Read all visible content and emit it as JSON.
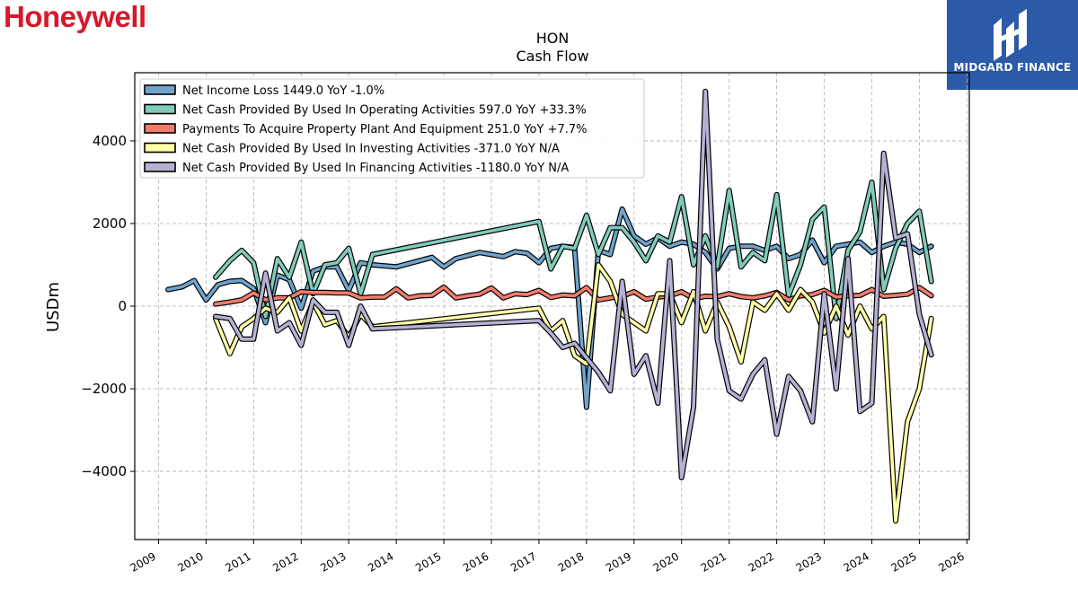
{
  "brand": {
    "name": "Honeywell",
    "color": "#d7182a"
  },
  "watermark": {
    "text": "MIDGARD FINANCE",
    "background": "#2b5aa8"
  },
  "chart_data": {
    "type": "line",
    "title": "HON",
    "subtitle": "Cash Flow",
    "ylabel": "USDm",
    "xlabel": "",
    "xlim": [
      2008.5,
      2026.05
    ],
    "ylim": [
      -5650,
      5650
    ],
    "yticks": [
      -4000,
      -2000,
      0,
      2000,
      4000
    ],
    "ytick_labels": [
      "−4000",
      "−2000",
      "0",
      "2000",
      "4000"
    ],
    "xticks": [
      2009,
      2010,
      2011,
      2012,
      2013,
      2014,
      2015,
      2016,
      2017,
      2018,
      2019,
      2020,
      2021,
      2022,
      2023,
      2024,
      2025,
      2026
    ],
    "xtick_labels": [
      "2009",
      "2010",
      "2011",
      "2012",
      "2013",
      "2014",
      "2015",
      "2016",
      "2017",
      "2018",
      "2019",
      "2020",
      "2021",
      "2022",
      "2023",
      "2024",
      "2025",
      "2026"
    ],
    "grid": true,
    "legend_position": "top-left",
    "series": [
      {
        "name": "Net Income Loss",
        "legend": "Net Income Loss  1449.0 YoY -1.0%",
        "color": "#6fa3cc",
        "points": [
          [
            2009.2,
            400
          ],
          [
            2009.5,
            470
          ],
          [
            2009.75,
            620
          ],
          [
            2010.0,
            150
          ],
          [
            2010.25,
            520
          ],
          [
            2010.5,
            600
          ],
          [
            2010.75,
            620
          ],
          [
            2011.0,
            430
          ],
          [
            2011.25,
            -400
          ],
          [
            2011.5,
            750
          ],
          [
            2011.75,
            640
          ],
          [
            2012.0,
            -50
          ],
          [
            2012.25,
            850
          ],
          [
            2012.5,
            950
          ],
          [
            2012.75,
            950
          ],
          [
            2013.0,
            380
          ],
          [
            2013.25,
            1050
          ],
          [
            2013.5,
            1000
          ],
          [
            2014.0,
            950
          ],
          [
            2014.75,
            1180
          ],
          [
            2015.0,
            950
          ],
          [
            2015.25,
            1150
          ],
          [
            2015.75,
            1300
          ],
          [
            2016.0,
            1250
          ],
          [
            2016.25,
            1200
          ],
          [
            2016.5,
            1320
          ],
          [
            2016.75,
            1280
          ],
          [
            2017.0,
            1050
          ],
          [
            2017.25,
            1400
          ],
          [
            2017.5,
            1450
          ],
          [
            2017.75,
            1420
          ],
          [
            2018.0,
            -2450
          ],
          [
            2018.25,
            1350
          ],
          [
            2018.5,
            1250
          ],
          [
            2018.75,
            2350
          ],
          [
            2019.0,
            1700
          ],
          [
            2019.25,
            1500
          ],
          [
            2019.5,
            1650
          ],
          [
            2019.75,
            1450
          ],
          [
            2020.0,
            1550
          ],
          [
            2020.25,
            1500
          ],
          [
            2020.5,
            1300
          ],
          [
            2020.75,
            900
          ],
          [
            2021.0,
            1400
          ],
          [
            2021.25,
            1450
          ],
          [
            2021.5,
            1450
          ],
          [
            2021.75,
            1350
          ],
          [
            2022.0,
            1450
          ],
          [
            2022.25,
            1150
          ],
          [
            2022.5,
            1250
          ],
          [
            2022.75,
            1600
          ],
          [
            2023.0,
            1050
          ],
          [
            2023.25,
            1450
          ],
          [
            2023.5,
            1500
          ],
          [
            2023.75,
            1550
          ],
          [
            2024.0,
            1300
          ],
          [
            2024.25,
            1450
          ],
          [
            2024.5,
            1550
          ],
          [
            2024.75,
            1500
          ],
          [
            2025.0,
            1300
          ],
          [
            2025.25,
            1449
          ]
        ]
      },
      {
        "name": "Net Cash Provided By Used In Operating Activities",
        "legend": "Net Cash Provided By Used In Operating Activities  597.0 YoY +33.3%",
        "color": "#80cbb9",
        "points": [
          [
            2010.2,
            700
          ],
          [
            2010.5,
            1100
          ],
          [
            2010.75,
            1350
          ],
          [
            2011.0,
            1050
          ],
          [
            2011.25,
            -250
          ],
          [
            2011.5,
            1150
          ],
          [
            2011.75,
            700
          ],
          [
            2012.0,
            1550
          ],
          [
            2012.25,
            300
          ],
          [
            2012.5,
            1000
          ],
          [
            2012.75,
            1050
          ],
          [
            2013.0,
            1400
          ],
          [
            2013.25,
            300
          ],
          [
            2013.5,
            1250
          ],
          [
            2017.0,
            2050
          ],
          [
            2017.25,
            900
          ],
          [
            2017.5,
            1450
          ],
          [
            2017.75,
            1400
          ],
          [
            2018.0,
            2200
          ],
          [
            2018.25,
            1250
          ],
          [
            2018.5,
            1900
          ],
          [
            2018.75,
            1900
          ],
          [
            2019.0,
            1550
          ],
          [
            2019.25,
            1100
          ],
          [
            2019.5,
            1700
          ],
          [
            2019.75,
            1550
          ],
          [
            2020.0,
            2650
          ],
          [
            2020.25,
            1000
          ],
          [
            2020.5,
            1700
          ],
          [
            2020.75,
            950
          ],
          [
            2021.0,
            2800
          ],
          [
            2021.25,
            950
          ],
          [
            2021.5,
            1300
          ],
          [
            2021.75,
            1100
          ],
          [
            2022.0,
            2700
          ],
          [
            2022.25,
            250
          ],
          [
            2022.5,
            1000
          ],
          [
            2022.75,
            2100
          ],
          [
            2023.0,
            2400
          ],
          [
            2023.25,
            -300
          ],
          [
            2023.5,
            1350
          ],
          [
            2023.75,
            1800
          ],
          [
            2024.0,
            3000
          ],
          [
            2024.25,
            400
          ],
          [
            2024.5,
            1400
          ],
          [
            2024.75,
            2000
          ],
          [
            2025.0,
            2300
          ],
          [
            2025.25,
            597
          ]
        ]
      },
      {
        "name": "Payments To Acquire Property Plant And Equipment",
        "legend": "Payments To Acquire Property Plant And Equipment  251.0 YoY +7.7%",
        "color": "#f07c6c",
        "points": [
          [
            2010.2,
            50
          ],
          [
            2010.5,
            100
          ],
          [
            2010.75,
            150
          ],
          [
            2011.0,
            320
          ],
          [
            2011.25,
            150
          ],
          [
            2011.5,
            200
          ],
          [
            2011.75,
            200
          ],
          [
            2012.0,
            350
          ],
          [
            2012.25,
            330
          ],
          [
            2012.5,
            330
          ],
          [
            2012.75,
            320
          ],
          [
            2013.0,
            320
          ],
          [
            2013.25,
            200
          ],
          [
            2013.5,
            220
          ],
          [
            2013.75,
            220
          ],
          [
            2014.0,
            420
          ],
          [
            2014.25,
            200
          ],
          [
            2014.5,
            250
          ],
          [
            2014.75,
            260
          ],
          [
            2015.0,
            460
          ],
          [
            2015.25,
            200
          ],
          [
            2015.5,
            250
          ],
          [
            2015.75,
            290
          ],
          [
            2016.0,
            440
          ],
          [
            2016.25,
            200
          ],
          [
            2016.5,
            300
          ],
          [
            2016.75,
            280
          ],
          [
            2017.0,
            380
          ],
          [
            2017.25,
            210
          ],
          [
            2017.5,
            270
          ],
          [
            2017.75,
            250
          ],
          [
            2018.0,
            450
          ],
          [
            2018.25,
            150
          ],
          [
            2018.5,
            200
          ],
          [
            2018.75,
            240
          ],
          [
            2019.0,
            350
          ],
          [
            2019.25,
            170
          ],
          [
            2019.5,
            220
          ],
          [
            2019.75,
            250
          ],
          [
            2020.0,
            350
          ],
          [
            2020.25,
            180
          ],
          [
            2020.5,
            240
          ],
          [
            2020.75,
            230
          ],
          [
            2021.0,
            300
          ],
          [
            2021.25,
            230
          ],
          [
            2021.5,
            200
          ],
          [
            2021.75,
            250
          ],
          [
            2022.0,
            330
          ],
          [
            2022.25,
            150
          ],
          [
            2022.5,
            250
          ],
          [
            2022.75,
            280
          ],
          [
            2023.0,
            380
          ],
          [
            2023.25,
            220
          ],
          [
            2023.5,
            250
          ],
          [
            2023.75,
            260
          ],
          [
            2024.0,
            400
          ],
          [
            2024.25,
            240
          ],
          [
            2024.5,
            260
          ],
          [
            2024.75,
            290
          ],
          [
            2025.0,
            450
          ],
          [
            2025.25,
            251
          ]
        ]
      },
      {
        "name": "Net Cash Provided By Used In Investing Activities",
        "legend": "Net Cash Provided By Used In Investing Activities  -371.0 YoY N/A",
        "color": "#ffffa8",
        "points": [
          [
            2010.2,
            -300
          ],
          [
            2010.5,
            -1150
          ],
          [
            2010.75,
            -500
          ],
          [
            2011.0,
            -300
          ],
          [
            2011.25,
            -50
          ],
          [
            2011.5,
            -150
          ],
          [
            2011.75,
            200
          ],
          [
            2012.0,
            -600
          ],
          [
            2012.25,
            100
          ],
          [
            2012.5,
            -450
          ],
          [
            2012.75,
            -350
          ],
          [
            2013.0,
            -750
          ],
          [
            2013.25,
            -200
          ],
          [
            2013.5,
            -500
          ],
          [
            2017.0,
            -50
          ],
          [
            2017.25,
            -600
          ],
          [
            2017.5,
            -350
          ],
          [
            2017.75,
            -1200
          ],
          [
            2018.0,
            -1400
          ],
          [
            2018.25,
            1000
          ],
          [
            2018.5,
            600
          ],
          [
            2018.75,
            -200
          ],
          [
            2019.0,
            -400
          ],
          [
            2019.25,
            -600
          ],
          [
            2019.5,
            300
          ],
          [
            2019.75,
            300
          ],
          [
            2020.0,
            -400
          ],
          [
            2020.25,
            350
          ],
          [
            2020.5,
            -600
          ],
          [
            2020.75,
            100
          ],
          [
            2021.0,
            -500
          ],
          [
            2021.25,
            -1350
          ],
          [
            2021.5,
            100
          ],
          [
            2021.75,
            -100
          ],
          [
            2022.0,
            300
          ],
          [
            2022.25,
            -100
          ],
          [
            2022.5,
            400
          ],
          [
            2022.75,
            100
          ],
          [
            2023.0,
            -650
          ],
          [
            2023.25,
            0
          ],
          [
            2023.5,
            -700
          ],
          [
            2023.75,
            0
          ],
          [
            2024.0,
            -550
          ],
          [
            2024.25,
            -250
          ],
          [
            2024.5,
            -5200
          ],
          [
            2024.75,
            -2800
          ],
          [
            2025.0,
            -2000
          ],
          [
            2025.25,
            -300
          ]
        ]
      },
      {
        "name": "Net Cash Provided By Used In Financing Activities",
        "legend": "Net Cash Provided By Used In Financing Activities  -1180.0 YoY N/A",
        "color": "#b4b2d4",
        "points": [
          [
            2010.2,
            -250
          ],
          [
            2010.5,
            -300
          ],
          [
            2010.75,
            -800
          ],
          [
            2011.0,
            -800
          ],
          [
            2011.25,
            800
          ],
          [
            2011.5,
            -600
          ],
          [
            2011.75,
            -400
          ],
          [
            2012.0,
            -950
          ],
          [
            2012.25,
            150
          ],
          [
            2012.5,
            -150
          ],
          [
            2012.75,
            -150
          ],
          [
            2013.0,
            -950
          ],
          [
            2013.25,
            0
          ],
          [
            2013.5,
            -550
          ],
          [
            2017.0,
            -350
          ],
          [
            2017.25,
            -650
          ],
          [
            2017.5,
            -1000
          ],
          [
            2017.75,
            -900
          ],
          [
            2018.0,
            -1250
          ],
          [
            2018.25,
            -1600
          ],
          [
            2018.5,
            -2050
          ],
          [
            2018.75,
            600
          ],
          [
            2019.0,
            -1650
          ],
          [
            2019.25,
            -1200
          ],
          [
            2019.5,
            -2350
          ],
          [
            2019.75,
            1100
          ],
          [
            2020.0,
            -4150
          ],
          [
            2020.25,
            -2450
          ],
          [
            2020.5,
            5200
          ],
          [
            2020.75,
            -800
          ],
          [
            2021.0,
            -2050
          ],
          [
            2021.25,
            -2250
          ],
          [
            2021.5,
            -1650
          ],
          [
            2021.75,
            -1300
          ],
          [
            2022.0,
            -3100
          ],
          [
            2022.25,
            -1700
          ],
          [
            2022.5,
            -2050
          ],
          [
            2022.75,
            -2800
          ],
          [
            2023.0,
            300
          ],
          [
            2023.25,
            -2000
          ],
          [
            2023.5,
            1150
          ],
          [
            2023.75,
            -2550
          ],
          [
            2024.0,
            -2350
          ],
          [
            2024.25,
            3700
          ],
          [
            2024.5,
            1650
          ],
          [
            2024.75,
            1750
          ],
          [
            2025.0,
            -200
          ],
          [
            2025.25,
            -1180
          ]
        ]
      }
    ]
  }
}
